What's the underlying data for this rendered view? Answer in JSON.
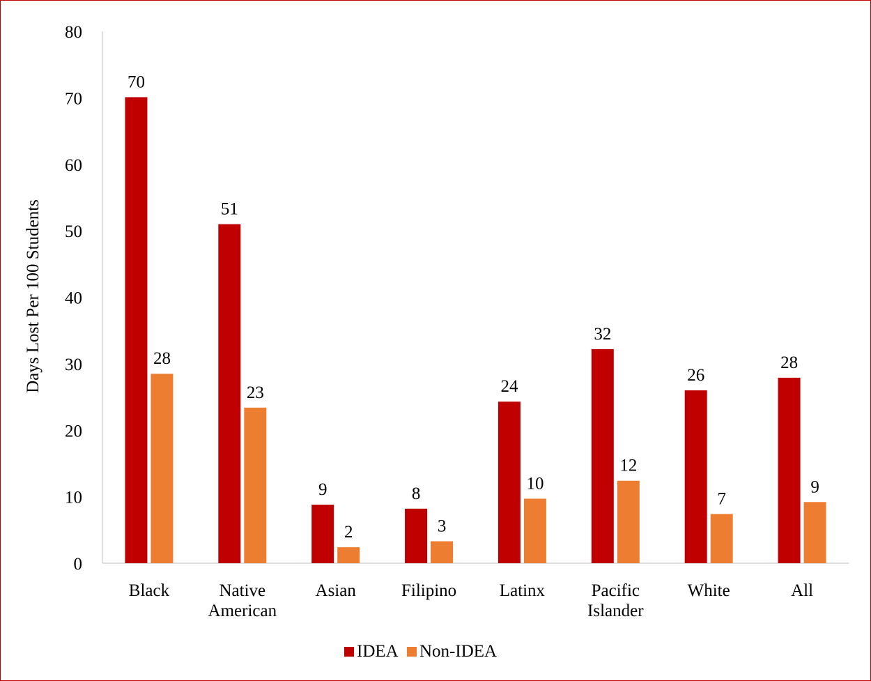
{
  "chart_data": {
    "type": "bar",
    "title": "",
    "xlabel": "",
    "ylabel": "Days Lost Per 100 Students",
    "ylim": [
      0,
      80
    ],
    "yticks": [
      "0",
      "10",
      "20",
      "30",
      "40",
      "50",
      "60",
      "70",
      "80"
    ],
    "grid": false,
    "legend_position": "bottom",
    "categories": [
      [
        "Black"
      ],
      [
        "Native",
        "American"
      ],
      [
        "Asian"
      ],
      [
        "Filipino"
      ],
      [
        "Latinx"
      ],
      [
        "Pacific",
        "Islander"
      ],
      [
        "White"
      ],
      [
        "All"
      ]
    ],
    "series": [
      {
        "name": "IDEA",
        "color": "#c00000",
        "values": [
          70.1,
          51.0,
          8.8,
          8.2,
          24.3,
          32.2,
          26.0,
          27.9
        ],
        "labels": [
          "70",
          "51",
          "9",
          "8",
          "24",
          "32",
          "26",
          "28"
        ]
      },
      {
        "name": "Non-IDEA",
        "color": "#ed7d31",
        "values": [
          28.5,
          23.4,
          2.4,
          3.3,
          9.7,
          12.4,
          7.4,
          9.2
        ],
        "labels": [
          "28",
          "23",
          "2",
          "3",
          "10",
          "12",
          "7",
          "9"
        ]
      }
    ]
  }
}
